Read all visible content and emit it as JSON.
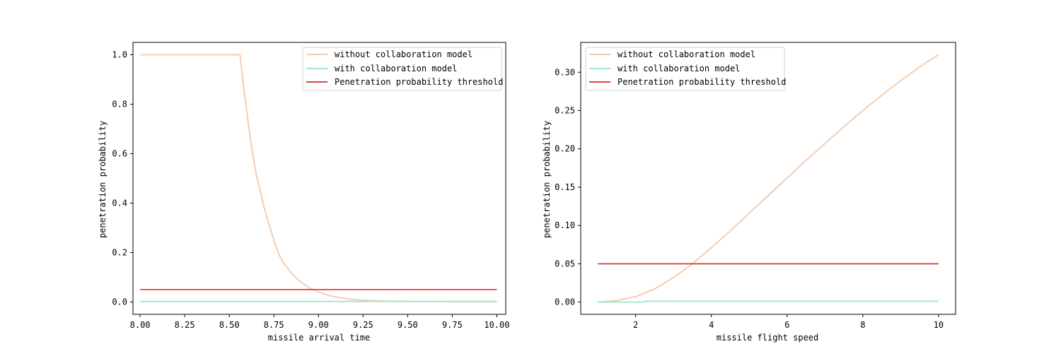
{
  "chart_data": [
    {
      "type": "line",
      "xlabel": "missile arrival time",
      "ylabel": "penetration probability",
      "xlim": [
        7.96,
        10.05
      ],
      "ylim": [
        -0.05,
        1.05
      ],
      "xticks": [
        8.0,
        8.25,
        8.5,
        8.75,
        9.0,
        9.25,
        9.5,
        9.75,
        10.0
      ],
      "xtick_labels": [
        "8.00",
        "8.25",
        "8.50",
        "8.75",
        "9.00",
        "9.25",
        "9.50",
        "9.75",
        "10.00"
      ],
      "yticks": [
        0.0,
        0.2,
        0.4,
        0.6,
        0.8,
        1.0
      ],
      "ytick_labels": [
        "0.0",
        "0.2",
        "0.4",
        "0.6",
        "0.8",
        "1.0"
      ],
      "legend_position": "top-right",
      "series": [
        {
          "name": "without collaboration model",
          "color": "#f4cdb1",
          "x": [
            8.0,
            8.56,
            8.58,
            8.6,
            8.62,
            8.65,
            8.68,
            8.7,
            8.72,
            8.75,
            8.78,
            8.8,
            8.85,
            8.9,
            8.95,
            9.0,
            9.05,
            9.1,
            9.15,
            9.2,
            9.3,
            9.4,
            9.5,
            9.75,
            10.0
          ],
          "y": [
            1.0,
            1.0,
            0.87,
            0.76,
            0.65,
            0.52,
            0.43,
            0.37,
            0.32,
            0.25,
            0.19,
            0.162,
            0.115,
            0.081,
            0.057,
            0.04,
            0.028,
            0.02,
            0.014,
            0.01,
            0.005,
            0.003,
            0.002,
            0.001,
            0.001
          ]
        },
        {
          "name": "with collaboration model",
          "color": "#a7e6cf",
          "x": [
            8.0,
            10.0
          ],
          "y": [
            0.002,
            0.002
          ]
        },
        {
          "name": "Penetration probability threshold",
          "color": "#e04040",
          "x": [
            8.0,
            10.0
          ],
          "y": [
            0.05,
            0.05
          ]
        }
      ]
    },
    {
      "type": "line",
      "xlabel": "missile flight speed",
      "ylabel": "penetration probability",
      "xlim": [
        0.55,
        10.45
      ],
      "ylim": [
        -0.016,
        0.339
      ],
      "xticks": [
        2,
        4,
        6,
        8,
        10
      ],
      "xtick_labels": [
        "2",
        "4",
        "6",
        "8",
        "10"
      ],
      "yticks": [
        0.0,
        0.05,
        0.1,
        0.15,
        0.2,
        0.25,
        0.3
      ],
      "ytick_labels": [
        "0.00",
        "0.05",
        "0.10",
        "0.15",
        "0.20",
        "0.25",
        "0.30"
      ],
      "legend_position": "top-left",
      "series": [
        {
          "name": "without collaboration model",
          "color": "#f4cdb1",
          "x": [
            1.0,
            1.5,
            2.0,
            2.5,
            3.0,
            3.5,
            4.0,
            4.5,
            5.0,
            5.5,
            6.0,
            6.5,
            7.0,
            7.5,
            8.0,
            8.5,
            9.0,
            9.5,
            10.0
          ],
          "y": [
            0.0,
            0.002,
            0.007,
            0.017,
            0.032,
            0.05,
            0.071,
            0.093,
            0.116,
            0.139,
            0.162,
            0.185,
            0.207,
            0.229,
            0.25,
            0.27,
            0.289,
            0.307,
            0.323
          ]
        },
        {
          "name": "with collaboration model",
          "color": "#a7e6cf",
          "x": [
            1.0,
            2.2,
            2.3,
            10.0
          ],
          "y": [
            0.0,
            0.0,
            0.001,
            0.001
          ]
        },
        {
          "name": "Penetration probability threshold",
          "color": "#e04040",
          "x": [
            1.0,
            10.0
          ],
          "y": [
            0.05,
            0.05
          ]
        }
      ]
    }
  ]
}
